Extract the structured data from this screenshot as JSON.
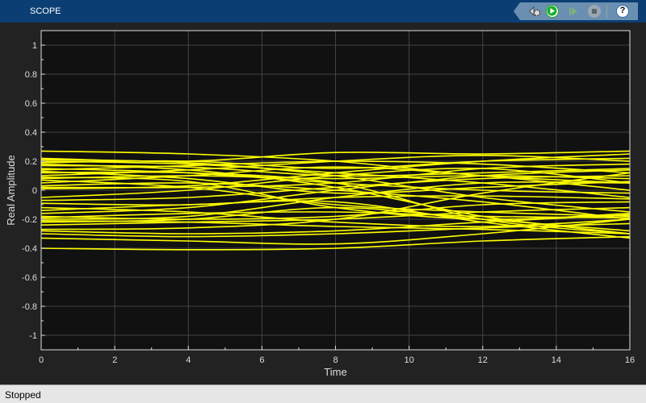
{
  "window": {
    "title": "SCOPE"
  },
  "toolbar": {
    "buttons": [
      {
        "name": "settings",
        "icon": "gear-icon"
      },
      {
        "name": "run",
        "icon": "play-icon",
        "color": "#1faa2e"
      },
      {
        "name": "step-forward",
        "icon": "step-forward-icon"
      },
      {
        "name": "stop",
        "icon": "stop-icon"
      },
      {
        "name": "help",
        "icon": "help-icon",
        "label": "?"
      }
    ]
  },
  "status": {
    "text": "Stopped"
  },
  "chart_data": {
    "type": "line",
    "xlabel": "Time",
    "ylabel": "Real Amplitude",
    "xlim": [
      0,
      16
    ],
    "ylim": [
      -1.1,
      1.1
    ],
    "xticks": [
      0,
      2,
      4,
      6,
      8,
      10,
      12,
      14,
      16
    ],
    "yticks": [
      1,
      0.8,
      0.6,
      0.4,
      0.2,
      0,
      -0.2,
      -0.4,
      -0.6,
      -0.8,
      -1
    ],
    "ytick_labels": [
      "1",
      "0.8",
      "0.6",
      "0.4",
      "0.2",
      "0",
      "-0.2",
      "-0.4",
      "-0.6",
      "-0.8",
      "-1"
    ],
    "grid": true,
    "background": "#111111",
    "line_color": "#ffff00",
    "trace_x": [
      0,
      4,
      8,
      12,
      16
    ],
    "traces": [
      [
        0.27,
        0.25,
        0.2,
        0.1,
        0.05
      ],
      [
        0.22,
        0.2,
        0.26,
        0.25,
        0.27
      ],
      [
        0.21,
        0.19,
        0.1,
        -0.05,
        -0.15
      ],
      [
        0.19,
        0.2,
        0.15,
        0.2,
        0.22
      ],
      [
        0.18,
        0.14,
        0.02,
        -0.18,
        -0.3
      ],
      [
        0.17,
        0.16,
        0.1,
        0.12,
        0.15
      ],
      [
        0.15,
        0.12,
        0.05,
        0.0,
        -0.02
      ],
      [
        0.14,
        0.17,
        0.2,
        0.18,
        0.12
      ],
      [
        0.12,
        0.12,
        0.05,
        -0.2,
        -0.3
      ],
      [
        0.1,
        0.14,
        0.2,
        0.24,
        0.2
      ],
      [
        0.08,
        0.1,
        0.08,
        0.1,
        0.08
      ],
      [
        0.07,
        0.02,
        -0.1,
        -0.15,
        -0.18
      ],
      [
        0.05,
        0.1,
        0.16,
        0.1,
        0.0
      ],
      [
        0.03,
        0.05,
        0.0,
        -0.08,
        -0.2
      ],
      [
        0.02,
        0.02,
        0.05,
        0.15,
        0.18
      ],
      [
        0.01,
        0.03,
        0.12,
        0.2,
        0.25
      ],
      [
        -0.07,
        -0.05,
        0.02,
        0.08,
        0.1
      ],
      [
        -0.09,
        -0.1,
        -0.05,
        -0.04,
        -0.06
      ],
      [
        -0.12,
        -0.15,
        -0.22,
        -0.25,
        -0.2
      ],
      [
        -0.16,
        -0.12,
        0.0,
        0.1,
        0.14
      ],
      [
        -0.18,
        -0.2,
        -0.18,
        -0.1,
        -0.08
      ],
      [
        -0.2,
        -0.18,
        -0.05,
        0.05,
        0.05
      ],
      [
        -0.21,
        -0.22,
        -0.25,
        -0.27,
        -0.3
      ],
      [
        -0.22,
        -0.2,
        -0.12,
        -0.2,
        -0.28
      ],
      [
        -0.24,
        -0.22,
        -0.2,
        -0.15,
        -0.12
      ],
      [
        -0.27,
        -0.26,
        -0.2,
        -0.02,
        0.12
      ],
      [
        -0.28,
        -0.3,
        -0.28,
        -0.22,
        -0.17
      ],
      [
        -0.3,
        -0.32,
        -0.3,
        -0.26,
        -0.23
      ],
      [
        -0.33,
        -0.35,
        -0.37,
        -0.3,
        -0.2
      ],
      [
        -0.4,
        -0.41,
        -0.4,
        -0.35,
        -0.32
      ],
      [
        0.13,
        0.08,
        -0.02,
        0.02,
        0.06
      ],
      [
        -0.05,
        0.0,
        0.1,
        0.15,
        0.05
      ],
      [
        0.09,
        0.06,
        -0.12,
        -0.2,
        -0.16
      ],
      [
        -0.14,
        -0.1,
        -0.08,
        -0.22,
        -0.33
      ],
      [
        0.2,
        0.18,
        0.12,
        0.05,
        -0.05
      ],
      [
        -0.19,
        -0.16,
        -0.15,
        -0.18,
        -0.19
      ]
    ]
  }
}
